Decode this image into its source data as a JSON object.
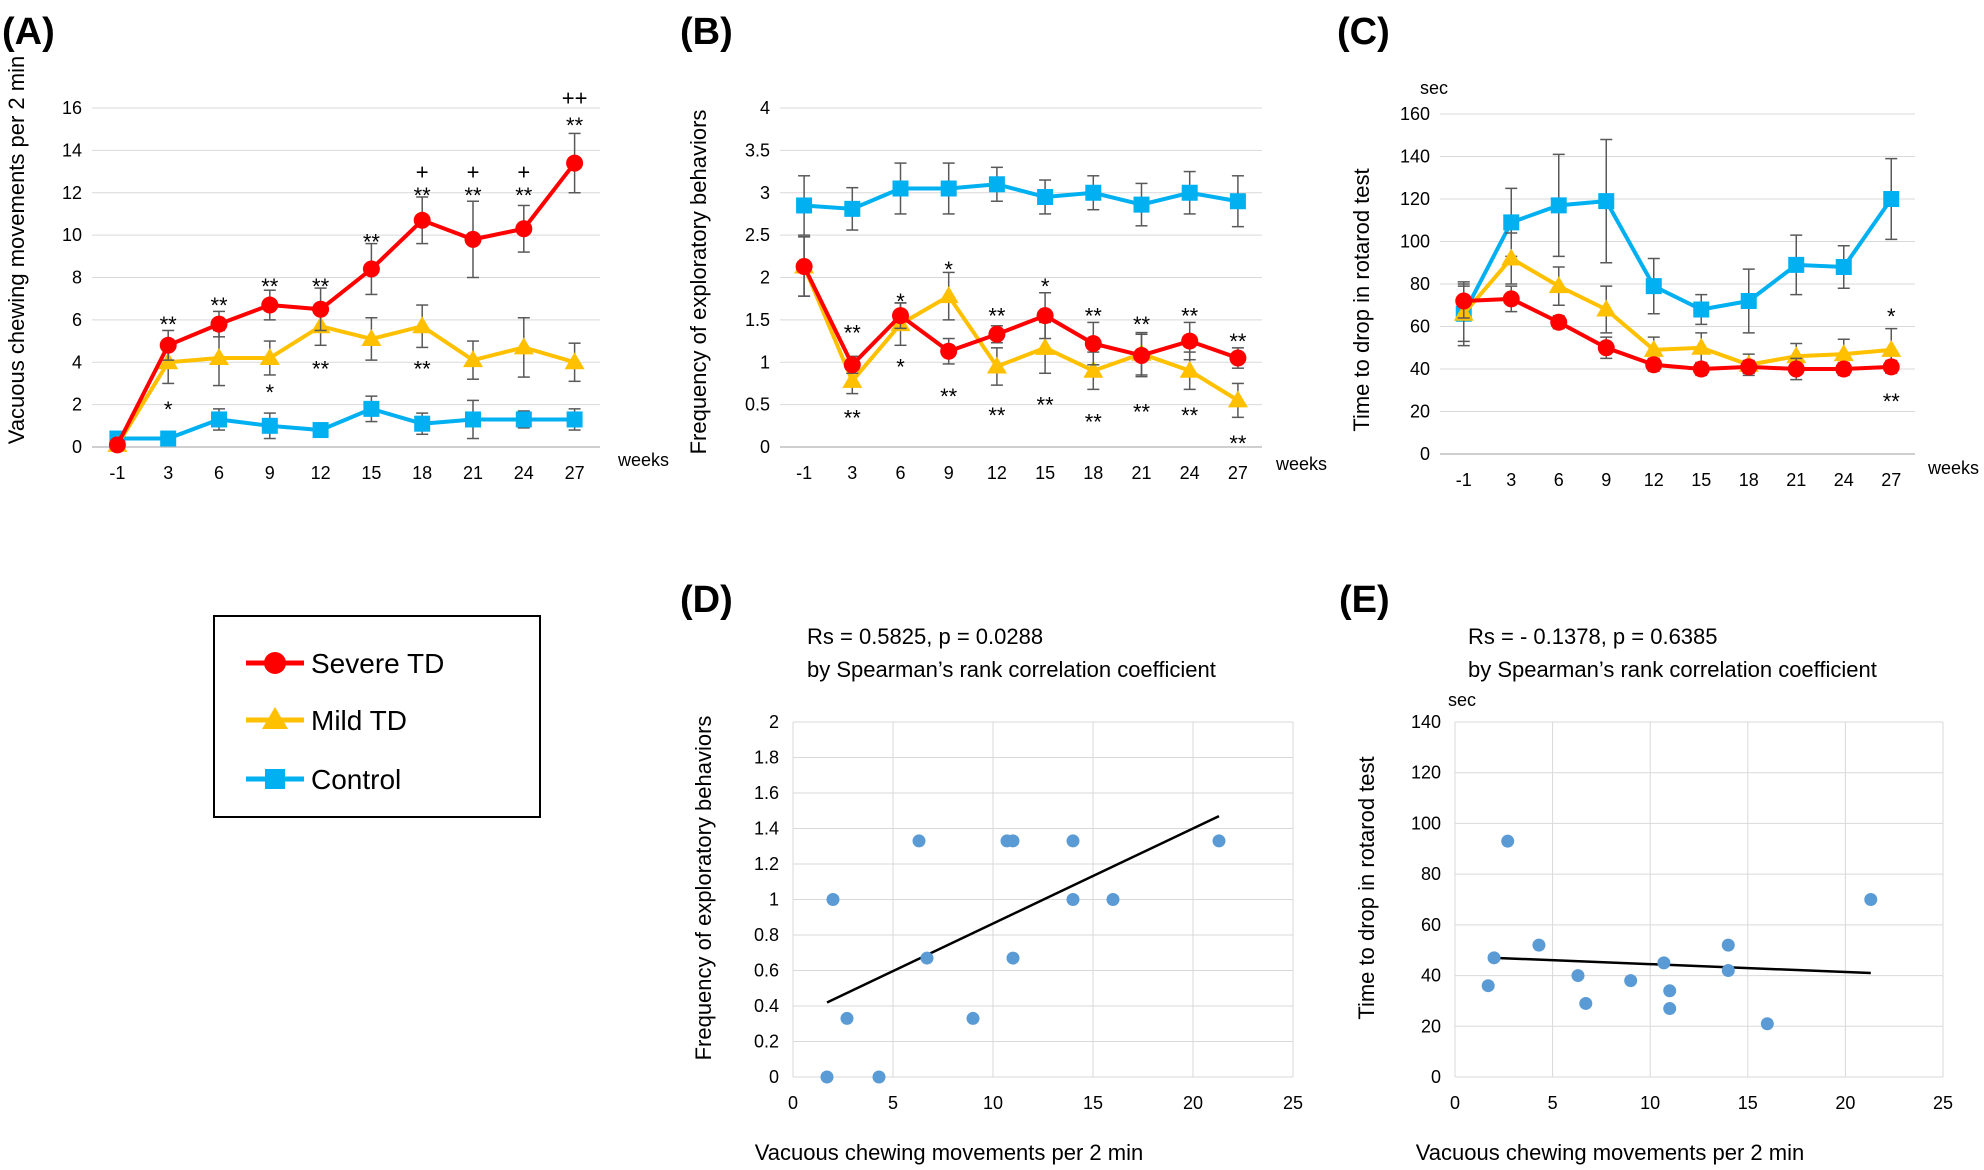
{
  "colors": {
    "severe": "#ff0000",
    "mild": "#ffc000",
    "control": "#00b0f0",
    "scatter": "#5b9bd5",
    "grid": "#d9d9d9",
    "error": "#595959"
  },
  "legend": {
    "severe": "Severe TD",
    "mild": "Mild TD",
    "control": "Control"
  },
  "chart_data": [
    {
      "panel": "(A)",
      "type": "line",
      "xlabel": "weeks",
      "ylabel": "Vacuous chewing movements  per 2 min",
      "ylim": [
        0,
        16
      ],
      "yticks": [
        0,
        2,
        4,
        6,
        8,
        10,
        12,
        14,
        16
      ],
      "categories": [
        "-1",
        "3",
        "6",
        "9",
        "12",
        "15",
        "18",
        "21",
        "24",
        "27"
      ],
      "series": [
        {
          "name": "Severe TD",
          "color": "#ff0000",
          "marker": "circle",
          "values": [
            0.1,
            4.8,
            5.8,
            6.7,
            6.5,
            8.4,
            10.7,
            9.8,
            10.3,
            13.4
          ],
          "errors": [
            0.1,
            0.7,
            0.6,
            0.7,
            1.0,
            1.2,
            1.1,
            1.8,
            1.1,
            1.4
          ]
        },
        {
          "name": "Mild TD",
          "color": "#ffc000",
          "marker": "triangle",
          "values": [
            0.1,
            4.0,
            4.2,
            4.2,
            5.7,
            5.1,
            5.7,
            4.1,
            4.7,
            4.0
          ],
          "errors": [
            0.1,
            1.0,
            1.3,
            0.8,
            0.9,
            1.0,
            1.0,
            0.9,
            1.4,
            0.9
          ]
        },
        {
          "name": "Control",
          "color": "#00b0f0",
          "marker": "square",
          "values": [
            0.4,
            0.4,
            1.3,
            1.0,
            0.8,
            1.8,
            1.1,
            1.3,
            1.3,
            1.3
          ],
          "errors": [
            0.2,
            0.2,
            0.5,
            0.6,
            0.3,
            0.6,
            0.5,
            0.9,
            0.4,
            0.5
          ]
        }
      ],
      "annotations": [
        {
          "x": "3",
          "y": 5.8,
          "text": "**"
        },
        {
          "x": "6",
          "y": 6.7,
          "text": "**"
        },
        {
          "x": "9",
          "y": 7.6,
          "text": "**"
        },
        {
          "x": "12",
          "y": 7.6,
          "text": "**"
        },
        {
          "x": "15",
          "y": 9.7,
          "text": "**"
        },
        {
          "x": "18",
          "y": 11.9,
          "text": "**"
        },
        {
          "x": "18",
          "y": 13.0,
          "text": "+"
        },
        {
          "x": "21",
          "y": 11.9,
          "text": "**"
        },
        {
          "x": "21",
          "y": 13.0,
          "text": "+"
        },
        {
          "x": "24",
          "y": 11.9,
          "text": "**"
        },
        {
          "x": "24",
          "y": 13.0,
          "text": "+"
        },
        {
          "x": "27",
          "y": 15.2,
          "text": "**"
        },
        {
          "x": "27",
          "y": 16.5,
          "text": "++"
        },
        {
          "x": "3",
          "y": 1.8,
          "text": "*"
        },
        {
          "x": "9",
          "y": 2.6,
          "text": "*"
        },
        {
          "x": "12",
          "y": 3.7,
          "text": "**"
        },
        {
          "x": "18",
          "y": 3.7,
          "text": "**"
        }
      ]
    },
    {
      "panel": "(B)",
      "type": "line",
      "xlabel": "weeks",
      "ylabel": "Frequency of exploratory behaviors",
      "ylim": [
        0,
        4
      ],
      "yticks": [
        0,
        0.5,
        1,
        1.5,
        2,
        2.5,
        3,
        3.5,
        4
      ],
      "categories": [
        "-1",
        "3",
        "6",
        "9",
        "12",
        "15",
        "18",
        "21",
        "24",
        "27"
      ],
      "series": [
        {
          "name": "Severe TD",
          "color": "#ff0000",
          "marker": "circle",
          "values": [
            2.13,
            0.97,
            1.55,
            1.13,
            1.33,
            1.55,
            1.22,
            1.08,
            1.25,
            1.05
          ],
          "errors": [
            0.35,
            0.1,
            0.15,
            0.15,
            0.1,
            0.27,
            0.25,
            0.25,
            0.22,
            0.12
          ]
        },
        {
          "name": "Mild TD",
          "color": "#ffc000",
          "marker": "triangle",
          "values": [
            2.13,
            0.78,
            1.45,
            1.78,
            0.95,
            1.17,
            0.9,
            1.1,
            0.9,
            0.55
          ],
          "errors": [
            0.35,
            0.15,
            0.25,
            0.28,
            0.22,
            0.3,
            0.22,
            0.25,
            0.22,
            0.2
          ]
        },
        {
          "name": "Control",
          "color": "#00b0f0",
          "marker": "square",
          "values": [
            2.85,
            2.81,
            3.05,
            3.05,
            3.1,
            2.95,
            3.0,
            2.86,
            3.0,
            2.9
          ],
          "errors": [
            0.35,
            0.25,
            0.3,
            0.3,
            0.2,
            0.2,
            0.2,
            0.25,
            0.25,
            0.3
          ]
        }
      ],
      "annotations": [
        {
          "x": "3",
          "y": 1.35,
          "text": "**"
        },
        {
          "x": "6",
          "y": 1.72,
          "text": "*"
        },
        {
          "x": "9",
          "y": 2.1,
          "text": "*"
        },
        {
          "x": "12",
          "y": 1.55,
          "text": "**"
        },
        {
          "x": "15",
          "y": 1.9,
          "text": "*"
        },
        {
          "x": "18",
          "y": 1.55,
          "text": "**"
        },
        {
          "x": "21",
          "y": 1.45,
          "text": "**"
        },
        {
          "x": "24",
          "y": 1.55,
          "text": "**"
        },
        {
          "x": "27",
          "y": 1.25,
          "text": "**"
        },
        {
          "x": "3",
          "y": 0.35,
          "text": "**"
        },
        {
          "x": "6",
          "y": 0.95,
          "text": "*"
        },
        {
          "x": "9",
          "y": 0.6,
          "text": "**"
        },
        {
          "x": "12",
          "y": 0.38,
          "text": "**"
        },
        {
          "x": "15",
          "y": 0.5,
          "text": "**"
        },
        {
          "x": "18",
          "y": 0.3,
          "text": "**"
        },
        {
          "x": "21",
          "y": 0.42,
          "text": "**"
        },
        {
          "x": "24",
          "y": 0.38,
          "text": "**"
        },
        {
          "x": "27",
          "y": 0.05,
          "text": "**"
        }
      ]
    },
    {
      "panel": "(C)",
      "type": "line",
      "xlabel": "weeks",
      "ylabel": "Time to drop in rotarod test",
      "unit": "sec",
      "ylim": [
        0,
        160
      ],
      "yticks": [
        0,
        20,
        40,
        60,
        80,
        100,
        120,
        140,
        160
      ],
      "categories": [
        "-1",
        "3",
        "6",
        "9",
        "12",
        "15",
        "18",
        "21",
        "24",
        "27"
      ],
      "series": [
        {
          "name": "Severe TD",
          "color": "#ff0000",
          "marker": "circle",
          "values": [
            72,
            73,
            62,
            50,
            42,
            40,
            41,
            40,
            40,
            41
          ],
          "errors": [
            8,
            6,
            3,
            5,
            3,
            3,
            3,
            5,
            3,
            3
          ]
        },
        {
          "name": "Mild TD",
          "color": "#ffc000",
          "marker": "triangle",
          "values": [
            66,
            92,
            79,
            68,
            49,
            50,
            42,
            46,
            47,
            49
          ],
          "errors": [
            15,
            12,
            9,
            11,
            6,
            7,
            5,
            6,
            7,
            10
          ]
        },
        {
          "name": "Control",
          "color": "#00b0f0",
          "marker": "square",
          "values": [
            66,
            109,
            117,
            119,
            79,
            68,
            72,
            89,
            88,
            120
          ],
          "errors": [
            13,
            16,
            24,
            29,
            13,
            7,
            15,
            14,
            10,
            19
          ]
        }
      ],
      "annotations": [
        {
          "x": "27",
          "y": 65,
          "text": "*"
        },
        {
          "x": "27",
          "y": 25,
          "text": "**"
        }
      ]
    },
    {
      "panel": "(D)",
      "type": "scatter",
      "stat_line1": "Rs = 0.5825, p = 0.0288",
      "stat_line2": "by Spearman’s rank correlation coefficient",
      "xlabel": "Vacuous chewing movements  per 2 min",
      "ylabel": "Frequency of exploratory behaviors",
      "xlim": [
        0,
        25
      ],
      "xticks": [
        0,
        5,
        10,
        15,
        20,
        25
      ],
      "ylim": [
        0,
        2
      ],
      "yticks": [
        0,
        0.2,
        0.4,
        0.6,
        0.8,
        1,
        1.2,
        1.4,
        1.6,
        1.8,
        2
      ],
      "points": [
        [
          1.7,
          0
        ],
        [
          2.0,
          1.0
        ],
        [
          2.7,
          0.33
        ],
        [
          4.3,
          0
        ],
        [
          6.3,
          1.33
        ],
        [
          6.7,
          0.67
        ],
        [
          9.0,
          0.33
        ],
        [
          10.7,
          1.33
        ],
        [
          11.0,
          1.33
        ],
        [
          11.0,
          0.67
        ],
        [
          14.0,
          1.33
        ],
        [
          14.0,
          1.0
        ],
        [
          16.0,
          1.0
        ],
        [
          21.3,
          1.33
        ]
      ],
      "trendline": [
        [
          1.7,
          0.42
        ],
        [
          21.3,
          1.47
        ]
      ]
    },
    {
      "panel": "(E)",
      "type": "scatter",
      "stat_line1": "Rs = - 0.1378, p = 0.6385",
      "stat_line2": "by Spearman’s rank correlation coefficient",
      "xlabel": "Vacuous chewing movements  per 2 min",
      "ylabel": "Time to drop in rotarod test",
      "unit": "sec",
      "xlim": [
        0,
        25
      ],
      "xticks": [
        0,
        5,
        10,
        15,
        20,
        25
      ],
      "ylim": [
        0,
        140
      ],
      "yticks": [
        0,
        20,
        40,
        60,
        80,
        100,
        120,
        140
      ],
      "points": [
        [
          1.7,
          36
        ],
        [
          2.0,
          47
        ],
        [
          2.7,
          93
        ],
        [
          4.3,
          52
        ],
        [
          6.3,
          40
        ],
        [
          6.7,
          29
        ],
        [
          9.0,
          38
        ],
        [
          10.7,
          45
        ],
        [
          11.0,
          34
        ],
        [
          11.0,
          27
        ],
        [
          14.0,
          52
        ],
        [
          14.0,
          42
        ],
        [
          16.0,
          21
        ],
        [
          21.3,
          70
        ]
      ],
      "trendline": [
        [
          2.0,
          47
        ],
        [
          21.3,
          41
        ]
      ]
    }
  ]
}
